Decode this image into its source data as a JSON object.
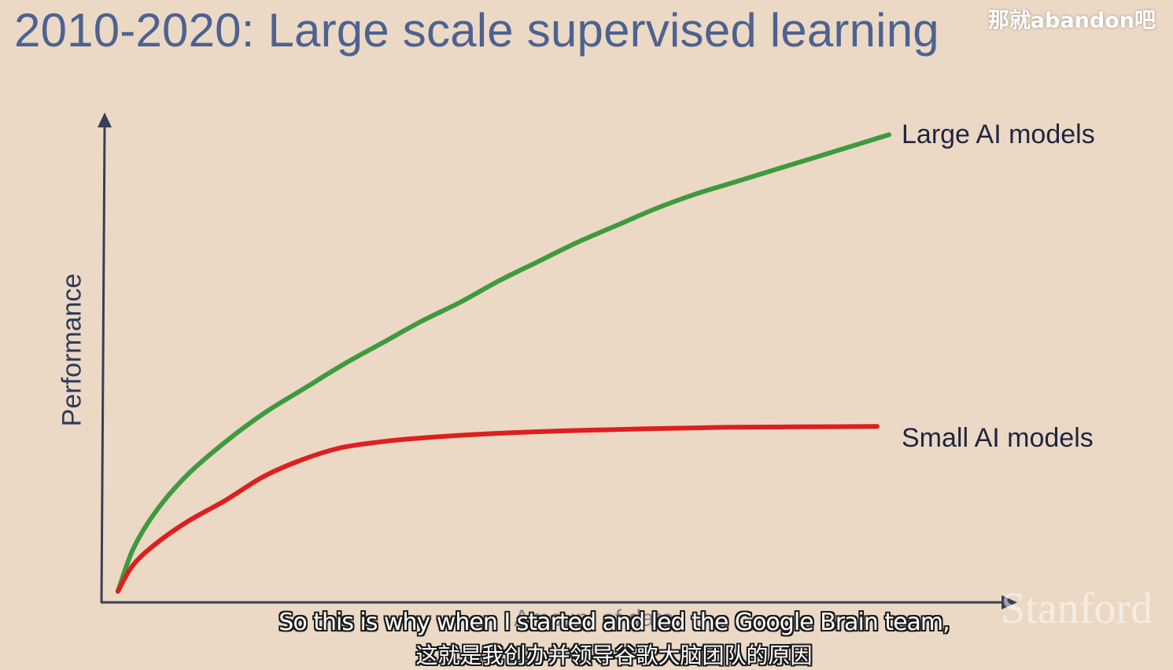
{
  "slide": {
    "title": "2010-2020: Large scale supervised learning",
    "watermark": "那就abandon吧",
    "logo_text": "Stanford"
  },
  "subtitles": {
    "english": "So this is why when I started and led the Google Brain team,",
    "chinese": "这就是我创办并领导谷歌大脑团队的原因"
  },
  "colors": {
    "background": "#ebd9c5",
    "title": "#4d6290",
    "axis": "#3a3f55",
    "large_models": "#3f9a3f",
    "small_models": "#dd1f1f"
  },
  "chart_data": {
    "type": "line",
    "title": "",
    "xlabel": "Amount of data",
    "ylabel": "Performance",
    "xlim": [
      0,
      100
    ],
    "ylim": [
      0,
      100
    ],
    "grid": false,
    "legend": "right-of-line-ends",
    "series": [
      {
        "name": "Large AI models",
        "color": "#3f9a3f",
        "x": [
          1,
          3,
          6,
          10,
          15,
          20,
          25,
          30,
          35,
          40,
          45,
          50,
          55,
          60,
          65,
          70,
          75,
          80,
          85,
          90,
          95,
          100
        ],
        "y": [
          1,
          10,
          18,
          25.5,
          32.5,
          38.5,
          43.5,
          48.5,
          53,
          57.5,
          61.5,
          66,
          70,
          74,
          77.5,
          81,
          84,
          86.5,
          89,
          91.5,
          94,
          96.5
        ]
      },
      {
        "name": "Small AI models",
        "color": "#dd1f1f",
        "x": [
          1,
          3,
          6,
          10,
          15,
          20,
          25,
          30,
          35,
          40,
          50,
          60,
          70,
          80,
          90,
          100
        ],
        "y": [
          1,
          6.5,
          11,
          15.5,
          20,
          25,
          28.5,
          31,
          32.2,
          33,
          34,
          34.6,
          35,
          35.3,
          35.4,
          35.5
        ]
      }
    ]
  }
}
